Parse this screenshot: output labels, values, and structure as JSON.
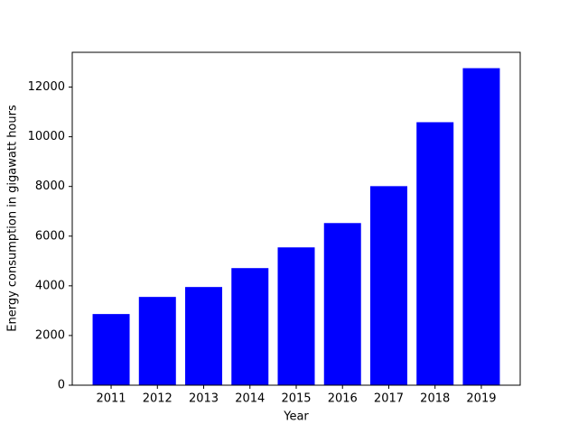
{
  "chart_data": {
    "type": "bar",
    "x_label": "Year",
    "y_label": "Energy consumption in gigawatt hours",
    "categories": [
      "2011",
      "2012",
      "2013",
      "2014",
      "2015",
      "2016",
      "2017",
      "2018",
      "2019"
    ],
    "values": [
      2864,
      3553,
      3952,
      4713,
      5547,
      6526,
      8012,
      10586,
      12761
    ],
    "color": "#0000ff",
    "ylim": [
      0,
      13399
    ],
    "yticks": [
      0,
      2000,
      4000,
      6000,
      8000,
      10000,
      12000
    ],
    "grid": false
  }
}
